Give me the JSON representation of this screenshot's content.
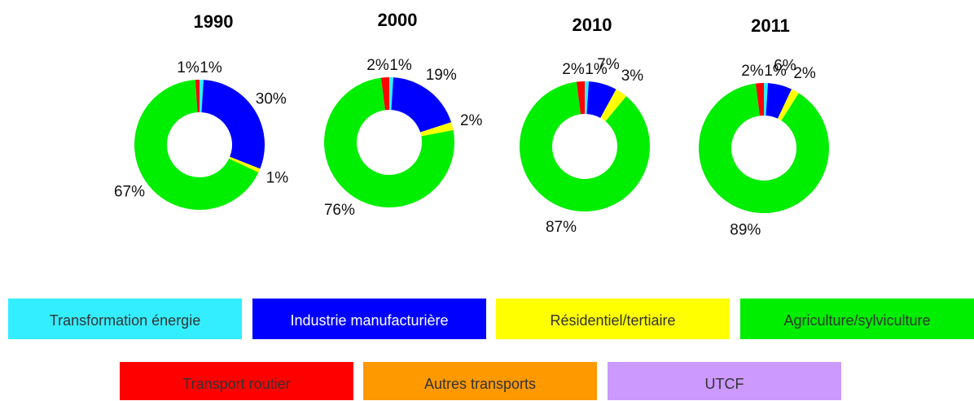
{
  "chart_data": {
    "type": "donut",
    "categories": [
      "Transformation énergie",
      "Industrie manufacturière",
      "Résidentiel/tertiaire",
      "Agriculture/sylviculture",
      "Transport routier",
      "Autres transports",
      "UTCF"
    ],
    "colors": [
      "#33eeff",
      "#0000ff",
      "#ffff00",
      "#00ee00",
      "#ff0000",
      "#ff9900",
      "#cc99ff"
    ],
    "charts": [
      {
        "title": "1990",
        "values": [
          1,
          30,
          1,
          67,
          1,
          null,
          null
        ],
        "value_labels": [
          "1%",
          "30%",
          "1%",
          "67%",
          "1%",
          null,
          null
        ]
      },
      {
        "title": "2000",
        "values": [
          1,
          19,
          2,
          76,
          2,
          null,
          null
        ],
        "value_labels": [
          "1%",
          "19%",
          "2%",
          "76%",
          "2%",
          null,
          null
        ]
      },
      {
        "title": "2010",
        "values": [
          1,
          7,
          3,
          87,
          2,
          null,
          null
        ],
        "value_labels": [
          "1%",
          "7%",
          "3%",
          "87%",
          "2%",
          null,
          null
        ]
      },
      {
        "title": "2011",
        "values": [
          1,
          6,
          2,
          89,
          2,
          null,
          null
        ],
        "value_labels": [
          "1%",
          "6%",
          "2%",
          "89%",
          "2%",
          null,
          null
        ]
      }
    ]
  }
}
